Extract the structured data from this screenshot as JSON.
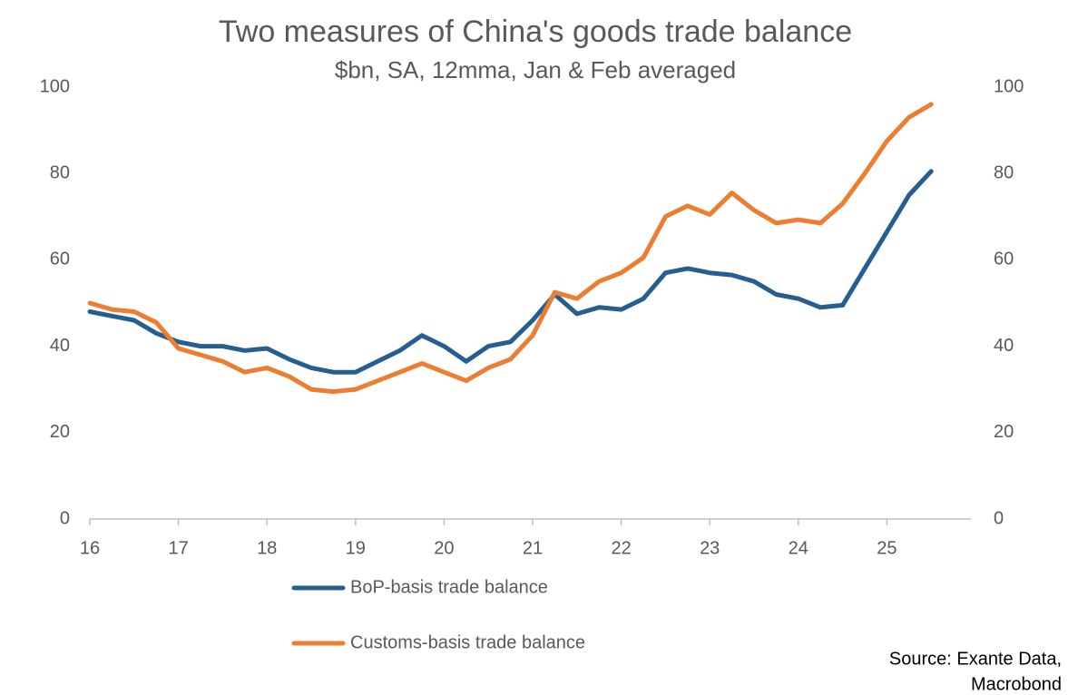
{
  "chart_data": {
    "type": "line",
    "title": "Two measures of China's goods trade balance",
    "subtitle": "$bn, SA, 12mma, Jan & Feb averaged",
    "source": [
      "Source: Exante Data,",
      "Macrobond"
    ],
    "x": [
      16,
      16.25,
      16.5,
      16.75,
      17,
      17.25,
      17.5,
      17.75,
      18,
      18.25,
      18.5,
      18.75,
      19,
      19.25,
      19.5,
      19.75,
      20,
      20.25,
      20.5,
      20.75,
      21,
      21.25,
      21.5,
      21.75,
      22,
      22.25,
      22.5,
      22.75,
      23,
      23.25,
      23.5,
      23.75,
      24,
      24.25,
      24.5,
      24.75,
      25,
      25.25,
      25.5
    ],
    "series": [
      {
        "name": "BoP-basis trade balance",
        "color": "#255e91",
        "values": [
          48,
          47,
          46,
          43,
          41,
          40,
          40,
          39,
          39.5,
          37,
          35,
          34,
          34,
          36.5,
          39,
          42.5,
          40,
          36.5,
          40,
          41,
          46,
          52,
          47.5,
          49,
          48.5,
          51,
          57,
          58,
          57,
          56.5,
          55,
          52,
          51,
          49,
          49.5,
          58,
          66.5,
          75,
          80.5
        ]
      },
      {
        "name": "Customs-basis trade balance",
        "color": "#ed7d31",
        "values": [
          50,
          48.5,
          48,
          45.5,
          39.5,
          38,
          36.5,
          34,
          35,
          33,
          30,
          29.5,
          30,
          32,
          34,
          36,
          34,
          32,
          35,
          37,
          42.5,
          52.5,
          51,
          55,
          57,
          60.5,
          70,
          72.5,
          70.5,
          75.5,
          71.5,
          68.5,
          69.3,
          68.5,
          73,
          80,
          87.5,
          93,
          96
        ]
      }
    ],
    "xlim": [
      16,
      26
    ],
    "xticks": [
      16,
      17,
      18,
      19,
      20,
      21,
      22,
      23,
      24,
      25
    ],
    "ylim": [
      0,
      100
    ],
    "yticks": [
      0,
      20,
      40,
      60,
      80,
      100
    ],
    "y2lim": [
      0,
      100
    ],
    "y2ticks": [
      0,
      20,
      40,
      60,
      80,
      100
    ],
    "grid": false
  }
}
